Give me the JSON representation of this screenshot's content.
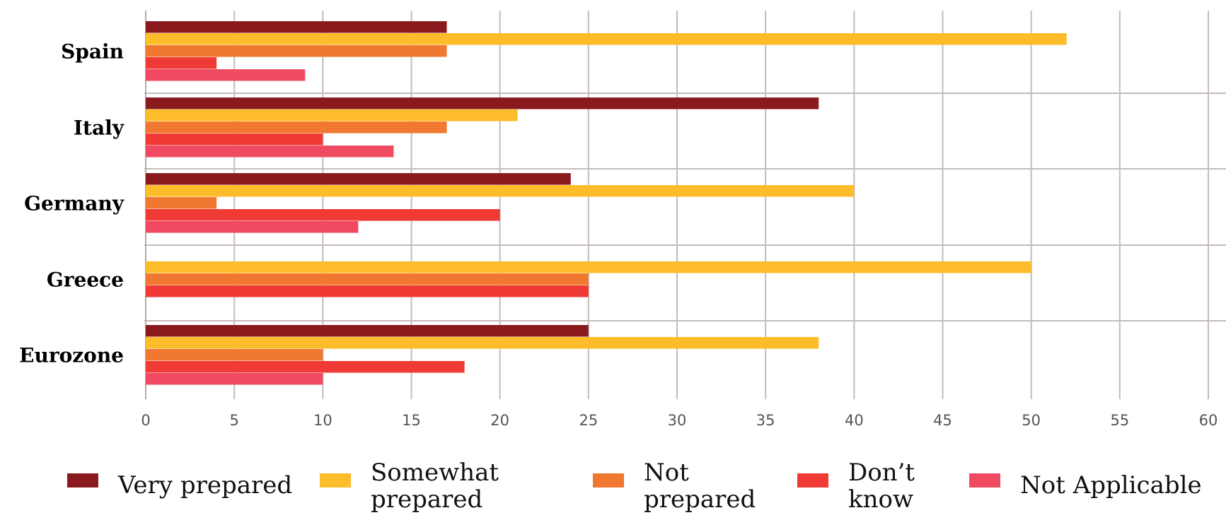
{
  "chart_data": {
    "type": "bar",
    "orientation": "horizontal",
    "categories": [
      "Spain",
      "Italy",
      "Germany",
      "Greece",
      "Eurozone"
    ],
    "series": [
      {
        "name": "Very prepared",
        "color": "#8b1a1f",
        "values": [
          17,
          38,
          24,
          0,
          25
        ]
      },
      {
        "name": "Somewhat prepared",
        "color": "#fdbd2a",
        "values": [
          52,
          21,
          40,
          50,
          38
        ]
      },
      {
        "name": "Not prepared",
        "color": "#f07830",
        "values": [
          17,
          17,
          4,
          25,
          10
        ]
      },
      {
        "name": "Don’t know",
        "color": "#ef3a35",
        "values": [
          4,
          10,
          20,
          25,
          18
        ]
      },
      {
        "name": "Not Applicable",
        "color": "#f04a62",
        "values": [
          9,
          14,
          12,
          0,
          10
        ]
      }
    ],
    "xlim": [
      0,
      60
    ],
    "xticks": [
      0,
      5,
      10,
      15,
      20,
      25,
      30,
      35,
      40,
      45,
      50,
      55,
      60
    ],
    "grid": true,
    "legend_position": "bottom"
  }
}
